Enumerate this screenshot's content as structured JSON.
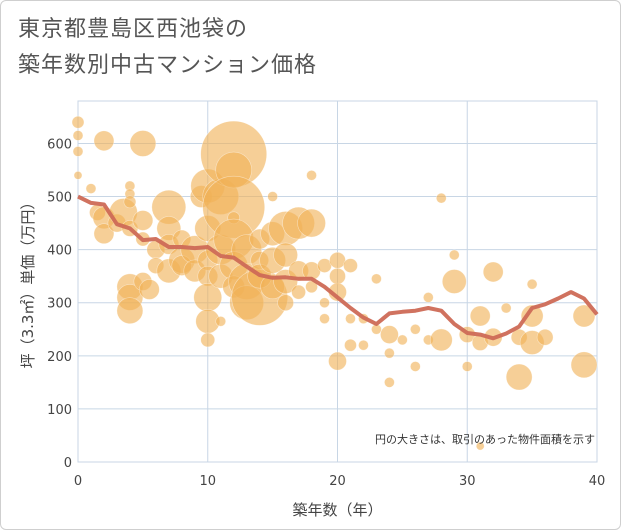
{
  "title": {
    "line1": "東京都豊島区西池袋の",
    "line2": "築年数別中古マンション価格"
  },
  "note": "円の大きさは、取引のあった物件面積を示す",
  "colors": {
    "bubble": "#f0b257",
    "trend": "#cd6a56",
    "grid": "#c8d6e5",
    "plot_bg": "#ffffff"
  },
  "chart_data": {
    "type": "scatter",
    "xlabel": "築年数（年）",
    "ylabel": "坪（3.3㎡）単価（万円）",
    "xlim": [
      0,
      40
    ],
    "ylim": [
      0,
      680
    ],
    "xticks": [
      0,
      10,
      20,
      30,
      40
    ],
    "yticks": [
      0,
      100,
      200,
      300,
      400,
      500,
      600
    ],
    "grid": true,
    "bubbles": [
      {
        "x": 0,
        "y": 640,
        "s": 6
      },
      {
        "x": 0,
        "y": 615,
        "s": 5
      },
      {
        "x": 0,
        "y": 585,
        "s": 5
      },
      {
        "x": 0,
        "y": 540,
        "s": 4
      },
      {
        "x": 1,
        "y": 515,
        "s": 5
      },
      {
        "x": 2,
        "y": 605,
        "s": 10
      },
      {
        "x": 1.5,
        "y": 470,
        "s": 8
      },
      {
        "x": 2,
        "y": 460,
        "s": 11
      },
      {
        "x": 2,
        "y": 430,
        "s": 10
      },
      {
        "x": 3,
        "y": 450,
        "s": 9
      },
      {
        "x": 3.5,
        "y": 470,
        "s": 14
      },
      {
        "x": 4,
        "y": 520,
        "s": 5
      },
      {
        "x": 4,
        "y": 505,
        "s": 5
      },
      {
        "x": 4,
        "y": 490,
        "s": 6
      },
      {
        "x": 4,
        "y": 440,
        "s": 8
      },
      {
        "x": 5,
        "y": 600,
        "s": 13
      },
      {
        "x": 5,
        "y": 455,
        "s": 10
      },
      {
        "x": 5,
        "y": 420,
        "s": 7
      },
      {
        "x": 6,
        "y": 400,
        "s": 9
      },
      {
        "x": 6,
        "y": 370,
        "s": 8
      },
      {
        "x": 4,
        "y": 330,
        "s": 13
      },
      {
        "x": 4,
        "y": 310,
        "s": 13
      },
      {
        "x": 4,
        "y": 285,
        "s": 13
      },
      {
        "x": 5,
        "y": 340,
        "s": 9
      },
      {
        "x": 5.5,
        "y": 325,
        "s": 10
      },
      {
        "x": 7,
        "y": 480,
        "s": 17
      },
      {
        "x": 7,
        "y": 440,
        "s": 12
      },
      {
        "x": 7,
        "y": 410,
        "s": 10
      },
      {
        "x": 7,
        "y": 360,
        "s": 12
      },
      {
        "x": 8,
        "y": 380,
        "s": 13
      },
      {
        "x": 8,
        "y": 420,
        "s": 9
      },
      {
        "x": 8,
        "y": 370,
        "s": 10
      },
      {
        "x": 9,
        "y": 400,
        "s": 14
      },
      {
        "x": 9,
        "y": 360,
        "s": 11
      },
      {
        "x": 9.5,
        "y": 500,
        "s": 11
      },
      {
        "x": 10,
        "y": 520,
        "s": 17
      },
      {
        "x": 10,
        "y": 440,
        "s": 13
      },
      {
        "x": 10,
        "y": 380,
        "s": 10
      },
      {
        "x": 10,
        "y": 350,
        "s": 10
      },
      {
        "x": 10,
        "y": 310,
        "s": 14
      },
      {
        "x": 10,
        "y": 265,
        "s": 12
      },
      {
        "x": 10,
        "y": 230,
        "s": 7
      },
      {
        "x": 11,
        "y": 500,
        "s": 18
      },
      {
        "x": 11,
        "y": 400,
        "s": 15
      },
      {
        "x": 11,
        "y": 350,
        "s": 12
      },
      {
        "x": 11,
        "y": 265,
        "s": 5
      },
      {
        "x": 12,
        "y": 580,
        "s": 33
      },
      {
        "x": 12,
        "y": 550,
        "s": 18
      },
      {
        "x": 12,
        "y": 480,
        "s": 31
      },
      {
        "x": 12,
        "y": 460,
        "s": 6
      },
      {
        "x": 12,
        "y": 420,
        "s": 20
      },
      {
        "x": 12,
        "y": 370,
        "s": 14
      },
      {
        "x": 12,
        "y": 330,
        "s": 11
      },
      {
        "x": 13,
        "y": 400,
        "s": 15
      },
      {
        "x": 13,
        "y": 340,
        "s": 18
      },
      {
        "x": 13,
        "y": 300,
        "s": 17
      },
      {
        "x": 14,
        "y": 310,
        "s": 28
      },
      {
        "x": 14,
        "y": 420,
        "s": 10
      },
      {
        "x": 14,
        "y": 380,
        "s": 9
      },
      {
        "x": 14,
        "y": 350,
        "s": 12
      },
      {
        "x": 15,
        "y": 430,
        "s": 12
      },
      {
        "x": 15,
        "y": 380,
        "s": 13
      },
      {
        "x": 15,
        "y": 330,
        "s": 12
      },
      {
        "x": 15,
        "y": 500,
        "s": 5
      },
      {
        "x": 16,
        "y": 440,
        "s": 17
      },
      {
        "x": 16,
        "y": 390,
        "s": 12
      },
      {
        "x": 16,
        "y": 340,
        "s": 12
      },
      {
        "x": 16,
        "y": 300,
        "s": 8
      },
      {
        "x": 17,
        "y": 450,
        "s": 16
      },
      {
        "x": 17,
        "y": 360,
        "s": 10
      },
      {
        "x": 17,
        "y": 320,
        "s": 7
      },
      {
        "x": 18,
        "y": 450,
        "s": 14
      },
      {
        "x": 18,
        "y": 540,
        "s": 5
      },
      {
        "x": 18,
        "y": 360,
        "s": 9
      },
      {
        "x": 18,
        "y": 330,
        "s": 6
      },
      {
        "x": 19,
        "y": 300,
        "s": 5
      },
      {
        "x": 19,
        "y": 270,
        "s": 5
      },
      {
        "x": 19,
        "y": 370,
        "s": 7
      },
      {
        "x": 20,
        "y": 380,
        "s": 8
      },
      {
        "x": 20,
        "y": 350,
        "s": 8
      },
      {
        "x": 20,
        "y": 320,
        "s": 9
      },
      {
        "x": 20,
        "y": 190,
        "s": 9
      },
      {
        "x": 21,
        "y": 370,
        "s": 7
      },
      {
        "x": 21,
        "y": 270,
        "s": 5
      },
      {
        "x": 21,
        "y": 220,
        "s": 6
      },
      {
        "x": 22,
        "y": 270,
        "s": 5
      },
      {
        "x": 22,
        "y": 220,
        "s": 5
      },
      {
        "x": 23,
        "y": 345,
        "s": 5
      },
      {
        "x": 23,
        "y": 250,
        "s": 5
      },
      {
        "x": 24,
        "y": 240,
        "s": 9
      },
      {
        "x": 24,
        "y": 205,
        "s": 5
      },
      {
        "x": 24,
        "y": 150,
        "s": 5
      },
      {
        "x": 25,
        "y": 230,
        "s": 5
      },
      {
        "x": 26,
        "y": 250,
        "s": 5
      },
      {
        "x": 26,
        "y": 180,
        "s": 5
      },
      {
        "x": 27,
        "y": 310,
        "s": 5
      },
      {
        "x": 27,
        "y": 230,
        "s": 5
      },
      {
        "x": 28,
        "y": 230,
        "s": 11
      },
      {
        "x": 28,
        "y": 497,
        "s": 5
      },
      {
        "x": 29,
        "y": 340,
        "s": 12
      },
      {
        "x": 29,
        "y": 390,
        "s": 5
      },
      {
        "x": 30,
        "y": 240,
        "s": 8
      },
      {
        "x": 30,
        "y": 180,
        "s": 5
      },
      {
        "x": 31,
        "y": 275,
        "s": 10
      },
      {
        "x": 31,
        "y": 225,
        "s": 8
      },
      {
        "x": 31,
        "y": 30,
        "s": 4
      },
      {
        "x": 32,
        "y": 358,
        "s": 10
      },
      {
        "x": 32,
        "y": 235,
        "s": 9
      },
      {
        "x": 33,
        "y": 290,
        "s": 5
      },
      {
        "x": 34,
        "y": 160,
        "s": 13
      },
      {
        "x": 34,
        "y": 235,
        "s": 8
      },
      {
        "x": 35,
        "y": 275,
        "s": 11
      },
      {
        "x": 35,
        "y": 225,
        "s": 12
      },
      {
        "x": 35,
        "y": 335,
        "s": 5
      },
      {
        "x": 36,
        "y": 235,
        "s": 8
      },
      {
        "x": 39,
        "y": 275,
        "s": 11
      },
      {
        "x": 39,
        "y": 183,
        "s": 13
      }
    ],
    "trend": {
      "x": [
        0,
        1,
        2,
        3,
        4,
        5,
        6,
        7,
        8,
        9,
        10,
        11,
        12,
        13,
        14,
        15,
        16,
        17,
        18,
        19,
        20,
        21,
        22,
        23,
        24,
        25,
        26,
        27,
        28,
        29,
        30,
        31,
        32,
        33,
        34,
        35,
        36,
        37,
        38,
        39,
        40
      ],
      "y": [
        500,
        488,
        485,
        448,
        440,
        418,
        420,
        405,
        405,
        403,
        405,
        388,
        385,
        368,
        352,
        347,
        348,
        345,
        345,
        330,
        310,
        290,
        272,
        260,
        280,
        283,
        285,
        290,
        285,
        260,
        243,
        240,
        233,
        242,
        255,
        290,
        297,
        308,
        320,
        308,
        278
      ]
    }
  }
}
